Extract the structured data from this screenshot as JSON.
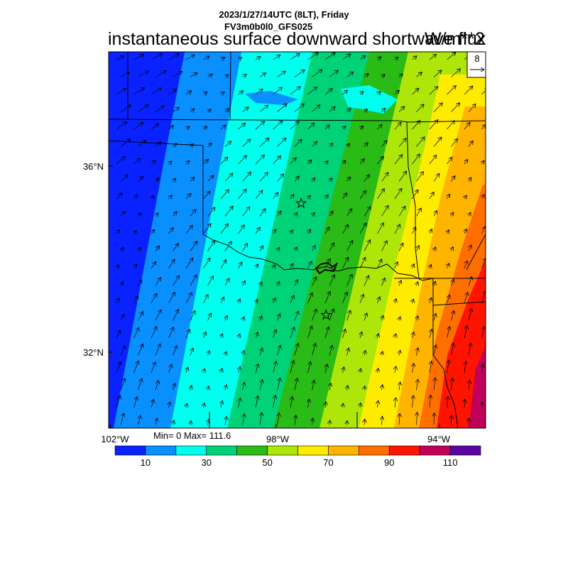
{
  "header": {
    "datetime": "2023/1/27/14UTC (8LT), Friday",
    "model": "FV3m0b0l0_GFS025",
    "title": "instantaneous surface downward shortwave flux",
    "units": "W/m**2"
  },
  "vector_ref": {
    "value": "8"
  },
  "axes": {
    "lat_labels": [
      "36°N",
      "32°N"
    ],
    "lon_labels": [
      "102°W",
      "98°W",
      "94°W"
    ]
  },
  "stats": {
    "text": "Min= 0 Max= 111.6"
  },
  "colorbar": {
    "colors": [
      "#0a22ff",
      "#0a8fff",
      "#00ffee",
      "#00d277",
      "#2bbb16",
      "#aee60a",
      "#ffeb00",
      "#ffb400",
      "#ff6f00",
      "#ff1400",
      "#c1005a",
      "#5b05a0"
    ],
    "labels": [
      "10",
      "30",
      "50",
      "70",
      "90",
      "110"
    ]
  },
  "map": {
    "markers": [
      {
        "name": "star-marker-north",
        "lon": -97.4,
        "lat": 35.2
      },
      {
        "name": "star-marker-south",
        "lon": -96.8,
        "lat": 32.8
      }
    ]
  }
}
